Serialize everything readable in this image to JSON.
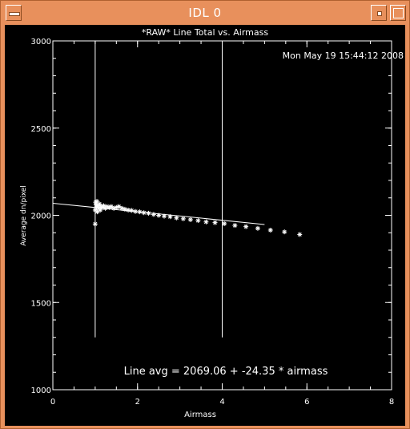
{
  "window": {
    "title": "IDL 0"
  },
  "chart_data": {
    "type": "scatter",
    "title": "*RAW* Line Total vs. Airmass",
    "timestamp": "Mon May 19 15:44:12 2008",
    "xlabel": "Airmass",
    "ylabel": "Average dn/pixel",
    "xlim": [
      0,
      8
    ],
    "ylim": [
      1000,
      3000
    ],
    "x_ticks": [
      0,
      2,
      4,
      6,
      8
    ],
    "y_ticks": [
      1000,
      1500,
      2000,
      2500,
      3000
    ],
    "vertical_lines_x": [
      1,
      4
    ],
    "vertical_line_range": [
      1300,
      3000
    ],
    "fit": {
      "intercept": 2069.06,
      "slope": -24.35,
      "x_range": [
        0,
        5
      ]
    },
    "fit_label": "Line avg = 2069.06 + -24.35 * airmass",
    "points": [
      [
        1.0,
        1950
      ],
      [
        1.0,
        2030
      ],
      [
        1.01,
        2075
      ],
      [
        1.02,
        2060
      ],
      [
        1.03,
        2045
      ],
      [
        1.04,
        2080
      ],
      [
        1.05,
        2020
      ],
      [
        1.06,
        2055
      ],
      [
        1.08,
        2040
      ],
      [
        1.1,
        2065
      ],
      [
        1.12,
        2030
      ],
      [
        1.14,
        2050
      ],
      [
        1.17,
        2045
      ],
      [
        1.2,
        2055
      ],
      [
        1.24,
        2040
      ],
      [
        1.28,
        2050
      ],
      [
        1.33,
        2045
      ],
      [
        1.38,
        2050
      ],
      [
        1.44,
        2040
      ],
      [
        1.5,
        2045
      ],
      [
        1.56,
        2050
      ],
      [
        1.63,
        2040
      ],
      [
        1.7,
        2035
      ],
      [
        1.78,
        2030
      ],
      [
        1.86,
        2028
      ],
      [
        1.95,
        2022
      ],
      [
        2.05,
        2020
      ],
      [
        2.15,
        2015
      ],
      [
        2.26,
        2012
      ],
      [
        2.38,
        2005
      ],
      [
        2.5,
        2000
      ],
      [
        2.63,
        1995
      ],
      [
        2.77,
        1992
      ],
      [
        2.92,
        1985
      ],
      [
        3.08,
        1980
      ],
      [
        3.25,
        1975
      ],
      [
        3.43,
        1970
      ],
      [
        3.62,
        1962
      ],
      [
        3.83,
        1958
      ],
      [
        4.05,
        1952
      ],
      [
        4.3,
        1942
      ],
      [
        4.56,
        1935
      ],
      [
        4.84,
        1925
      ],
      [
        5.14,
        1915
      ],
      [
        5.47,
        1905
      ],
      [
        5.83,
        1890
      ]
    ]
  }
}
